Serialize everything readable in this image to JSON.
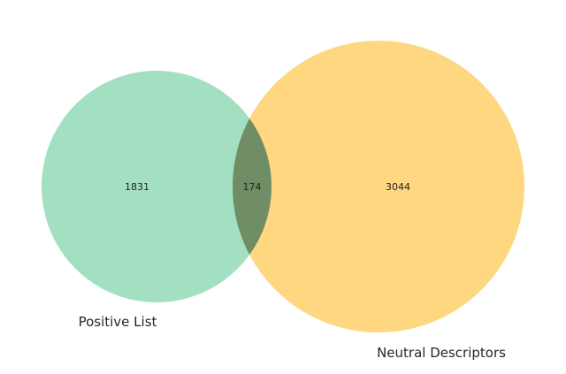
{
  "diagram": {
    "type": "venn2",
    "sets": [
      {
        "label": "Positive List",
        "only_count": "1831",
        "color": "#66cc99"
      },
      {
        "label": "Neutral Descriptors",
        "only_count": "3044",
        "color": "#ffb81c"
      }
    ],
    "intersection": {
      "count": "174",
      "color": "#4d7a66"
    }
  }
}
